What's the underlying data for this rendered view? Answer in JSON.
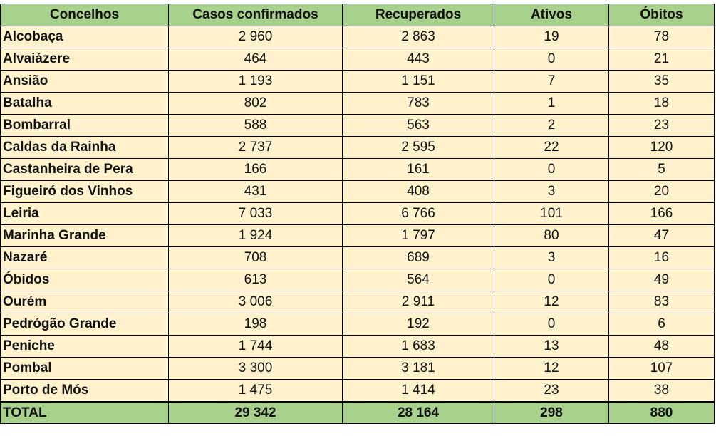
{
  "table": {
    "headers": [
      "Concelhos",
      "Casos confirmados",
      "Recuperados",
      "Ativos",
      "Óbitos"
    ],
    "rows": [
      [
        "Alcobaça",
        "2 960",
        "2 863",
        "19",
        "78"
      ],
      [
        "Alvaiázere",
        "464",
        "443",
        "0",
        "21"
      ],
      [
        "Ansião",
        "1 193",
        "1 151",
        "7",
        "35"
      ],
      [
        "Batalha",
        "802",
        "783",
        "1",
        "18"
      ],
      [
        "Bombarral",
        "588",
        "563",
        "2",
        "23"
      ],
      [
        "Caldas da Rainha",
        "2 737",
        "2 595",
        "22",
        "120"
      ],
      [
        "Castanheira de Pera",
        "166",
        "161",
        "0",
        "5"
      ],
      [
        "Figueiró dos Vinhos",
        "431",
        "408",
        "3",
        "20"
      ],
      [
        "Leiria",
        "7 033",
        "6 766",
        "101",
        "166"
      ],
      [
        "Marinha Grande",
        "1 924",
        "1 797",
        "80",
        "47"
      ],
      [
        "Nazaré",
        "708",
        "689",
        "3",
        "16"
      ],
      [
        "Óbidos",
        "613",
        "564",
        "0",
        "49"
      ],
      [
        "Ourém",
        "3 006",
        "2 911",
        "12",
        "83"
      ],
      [
        "Pedrógão Grande",
        "198",
        "192",
        "0",
        "6"
      ],
      [
        "Peniche",
        "1 744",
        "1 683",
        "13",
        "48"
      ],
      [
        "Pombal",
        "3 300",
        "3 181",
        "12",
        "107"
      ],
      [
        "Porto de Mós",
        "1 475",
        "1 414",
        "23",
        "38"
      ]
    ],
    "total": [
      "TOTAL",
      "29 342",
      "28 164",
      "298",
      "880"
    ]
  },
  "colors": {
    "header_background": "#a9d18e",
    "row_background": "#fff2cc",
    "border": "#000000"
  }
}
